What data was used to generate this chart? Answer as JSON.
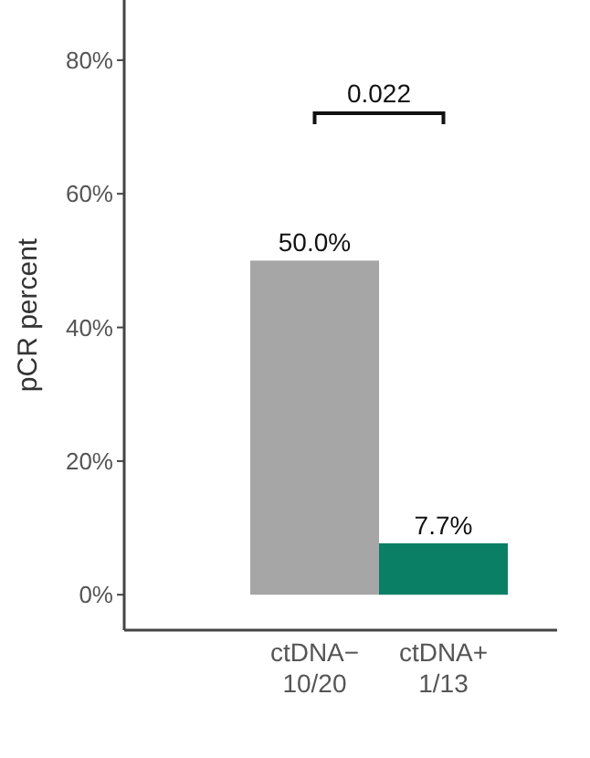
{
  "chart_data": {
    "type": "bar",
    "ylabel": "pCR percent",
    "categories": [
      "ctDNA−\n10/20",
      "ctDNA+\n1/13"
    ],
    "values": [
      50.0,
      7.7
    ],
    "colors": [
      "#a6a6a6",
      "#0b7f66"
    ],
    "value_labels": [
      "50.0%",
      "7.7%"
    ],
    "ylim": [
      -5.3,
      89
    ],
    "yticks": [
      {
        "value": 0,
        "label": "0%"
      },
      {
        "value": 20,
        "label": "20%"
      },
      {
        "value": 40,
        "label": "40%"
      },
      {
        "value": 60,
        "label": "60%"
      },
      {
        "value": 80,
        "label": "80%"
      }
    ],
    "grid": false,
    "annotations": [
      "0.022"
    ]
  }
}
